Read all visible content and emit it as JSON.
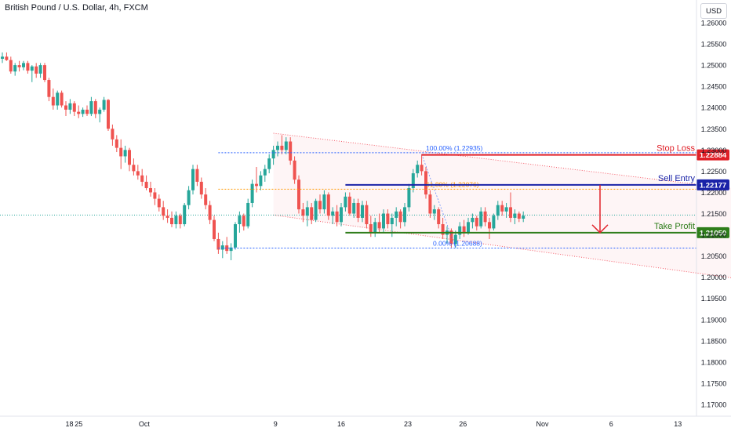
{
  "header": {
    "title": "British Pound / U.S. Dollar, 4h, FXCM",
    "currency": "USD"
  },
  "colors": {
    "up": "#26a69a",
    "down": "#ef5350",
    "stop_loss": "#e02028",
    "sell_entry": "#1a23a8",
    "take_profit": "#2e7d1a",
    "fib": "#2962ff",
    "fib_mid": "#ff9800",
    "channel": "#f23645"
  },
  "chart_data": {
    "type": "candlestick",
    "symbol": "British Pound / U.S. Dollar",
    "timeframe": "4h",
    "source": "FXCM",
    "y_axis": {
      "range": [
        1.168,
        1.263
      ],
      "ticks": [
        "1.26000",
        "1.25500",
        "1.25000",
        "1.24500",
        "1.24000",
        "1.23500",
        "1.23000",
        "1.22500",
        "1.22000",
        "1.21500",
        "1.21000",
        "1.20500",
        "1.20000",
        "1.19500",
        "1.19000",
        "1.18500",
        "1.18000",
        "1.17500",
        "1.17000"
      ]
    },
    "x_axis": {
      "ticks": [
        {
          "label": "18",
          "x": 1
        },
        {
          "label": "25",
          "x": 7.2
        },
        {
          "label": "Oct",
          "x": 13.4
        },
        {
          "label": "9",
          "x": 25.8
        },
        {
          "label": "16",
          "x": 32.0
        },
        {
          "label": "23",
          "x": 38.3
        },
        {
          "label": "26",
          "x": 43.5
        },
        {
          "label": "Nov",
          "x": 51.0
        },
        {
          "label": "6",
          "x": 57.5
        },
        {
          "label": "13",
          "x": 63.8
        }
      ]
    },
    "candles": [
      {
        "x": 0.0,
        "o": 1.2515,
        "h": 1.253,
        "l": 1.2505,
        "c": 1.252
      },
      {
        "x": 0.4,
        "o": 1.252,
        "h": 1.253,
        "l": 1.251,
        "c": 1.2512
      },
      {
        "x": 0.8,
        "o": 1.2512,
        "h": 1.252,
        "l": 1.248,
        "c": 1.2485
      },
      {
        "x": 1.2,
        "o": 1.2485,
        "h": 1.2505,
        "l": 1.2475,
        "c": 1.25
      },
      {
        "x": 1.6,
        "o": 1.25,
        "h": 1.251,
        "l": 1.2485,
        "c": 1.2495
      },
      {
        "x": 2.0,
        "o": 1.2495,
        "h": 1.251,
        "l": 1.2488,
        "c": 1.2505
      },
      {
        "x": 2.4,
        "o": 1.2505,
        "h": 1.251,
        "l": 1.248,
        "c": 1.2487
      },
      {
        "x": 2.8,
        "o": 1.2487,
        "h": 1.25,
        "l": 1.246,
        "c": 1.2497
      },
      {
        "x": 3.2,
        "o": 1.2497,
        "h": 1.2505,
        "l": 1.247,
        "c": 1.248
      },
      {
        "x": 3.6,
        "o": 1.248,
        "h": 1.2505,
        "l": 1.247,
        "c": 1.25
      },
      {
        "x": 4.0,
        "o": 1.25,
        "h": 1.2505,
        "l": 1.246,
        "c": 1.2465
      },
      {
        "x": 4.4,
        "o": 1.2465,
        "h": 1.247,
        "l": 1.2415,
        "c": 1.2425
      },
      {
        "x": 4.8,
        "o": 1.2425,
        "h": 1.2445,
        "l": 1.2395,
        "c": 1.2405
      },
      {
        "x": 5.2,
        "o": 1.2405,
        "h": 1.244,
        "l": 1.2395,
        "c": 1.2435
      },
      {
        "x": 5.6,
        "o": 1.2435,
        "h": 1.244,
        "l": 1.24,
        "c": 1.2405
      },
      {
        "x": 6.0,
        "o": 1.2405,
        "h": 1.2415,
        "l": 1.238,
        "c": 1.2395
      },
      {
        "x": 6.4,
        "o": 1.2395,
        "h": 1.242,
        "l": 1.2385,
        "c": 1.241
      },
      {
        "x": 6.8,
        "o": 1.241,
        "h": 1.2415,
        "l": 1.238,
        "c": 1.239
      },
      {
        "x": 7.2,
        "o": 1.239,
        "h": 1.2405,
        "l": 1.2375,
        "c": 1.2385
      },
      {
        "x": 7.6,
        "o": 1.2385,
        "h": 1.24,
        "l": 1.2378,
        "c": 1.2395
      },
      {
        "x": 8.0,
        "o": 1.2395,
        "h": 1.2405,
        "l": 1.238,
        "c": 1.2385
      },
      {
        "x": 8.4,
        "o": 1.2385,
        "h": 1.2425,
        "l": 1.238,
        "c": 1.2415
      },
      {
        "x": 8.8,
        "o": 1.2415,
        "h": 1.242,
        "l": 1.2375,
        "c": 1.2385
      },
      {
        "x": 9.2,
        "o": 1.2385,
        "h": 1.24,
        "l": 1.2365,
        "c": 1.2395
      },
      {
        "x": 9.6,
        "o": 1.2395,
        "h": 1.2425,
        "l": 1.239,
        "c": 1.2418
      },
      {
        "x": 10.0,
        "o": 1.2418,
        "h": 1.242,
        "l": 1.2345,
        "c": 1.235
      },
      {
        "x": 10.4,
        "o": 1.235,
        "h": 1.236,
        "l": 1.231,
        "c": 1.2325
      },
      {
        "x": 10.8,
        "o": 1.2325,
        "h": 1.2335,
        "l": 1.2295,
        "c": 1.2305
      },
      {
        "x": 11.2,
        "o": 1.2305,
        "h": 1.2325,
        "l": 1.2255,
        "c": 1.2285
      },
      {
        "x": 11.6,
        "o": 1.2285,
        "h": 1.231,
        "l": 1.227,
        "c": 1.23
      },
      {
        "x": 12.0,
        "o": 1.23,
        "h": 1.2305,
        "l": 1.225,
        "c": 1.2265
      },
      {
        "x": 12.4,
        "o": 1.2265,
        "h": 1.228,
        "l": 1.224,
        "c": 1.225
      },
      {
        "x": 12.8,
        "o": 1.225,
        "h": 1.2265,
        "l": 1.223,
        "c": 1.224
      },
      {
        "x": 13.2,
        "o": 1.224,
        "h": 1.2255,
        "l": 1.2215,
        "c": 1.2225
      },
      {
        "x": 13.6,
        "o": 1.2225,
        "h": 1.224,
        "l": 1.2205,
        "c": 1.221
      },
      {
        "x": 14.0,
        "o": 1.221,
        "h": 1.2225,
        "l": 1.219,
        "c": 1.22
      },
      {
        "x": 14.4,
        "o": 1.22,
        "h": 1.221,
        "l": 1.217,
        "c": 1.2185
      },
      {
        "x": 14.8,
        "o": 1.2185,
        "h": 1.2195,
        "l": 1.2155,
        "c": 1.2165
      },
      {
        "x": 15.2,
        "o": 1.2165,
        "h": 1.218,
        "l": 1.2135,
        "c": 1.2145
      },
      {
        "x": 15.6,
        "o": 1.2145,
        "h": 1.216,
        "l": 1.2128,
        "c": 1.214
      },
      {
        "x": 16.0,
        "o": 1.214,
        "h": 1.2155,
        "l": 1.2118,
        "c": 1.2125
      },
      {
        "x": 16.4,
        "o": 1.2125,
        "h": 1.2155,
        "l": 1.2115,
        "c": 1.2145
      },
      {
        "x": 16.8,
        "o": 1.2145,
        "h": 1.215,
        "l": 1.2115,
        "c": 1.2125
      },
      {
        "x": 17.2,
        "o": 1.2125,
        "h": 1.2175,
        "l": 1.212,
        "c": 1.217
      },
      {
        "x": 17.6,
        "o": 1.217,
        "h": 1.2215,
        "l": 1.216,
        "c": 1.2205
      },
      {
        "x": 18.0,
        "o": 1.2205,
        "h": 1.2265,
        "l": 1.2195,
        "c": 1.2255
      },
      {
        "x": 18.4,
        "o": 1.2255,
        "h": 1.2265,
        "l": 1.2215,
        "c": 1.2225
      },
      {
        "x": 18.8,
        "o": 1.2225,
        "h": 1.2235,
        "l": 1.2185,
        "c": 1.2195
      },
      {
        "x": 19.2,
        "o": 1.2195,
        "h": 1.221,
        "l": 1.216,
        "c": 1.217
      },
      {
        "x": 19.6,
        "o": 1.217,
        "h": 1.218,
        "l": 1.2125,
        "c": 1.2135
      },
      {
        "x": 20.0,
        "o": 1.2135,
        "h": 1.2145,
        "l": 1.2085,
        "c": 1.209
      },
      {
        "x": 20.4,
        "o": 1.209,
        "h": 1.2105,
        "l": 1.2055,
        "c": 1.2065
      },
      {
        "x": 20.8,
        "o": 1.2065,
        "h": 1.2085,
        "l": 1.2045,
        "c": 1.2075
      },
      {
        "x": 21.2,
        "o": 1.2075,
        "h": 1.2095,
        "l": 1.2055,
        "c": 1.2062
      },
      {
        "x": 21.6,
        "o": 1.2062,
        "h": 1.208,
        "l": 1.204,
        "c": 1.207
      },
      {
        "x": 22.0,
        "o": 1.207,
        "h": 1.213,
        "l": 1.2065,
        "c": 1.2125
      },
      {
        "x": 22.4,
        "o": 1.2125,
        "h": 1.2155,
        "l": 1.2105,
        "c": 1.2145
      },
      {
        "x": 22.8,
        "o": 1.2145,
        "h": 1.215,
        "l": 1.211,
        "c": 1.212
      },
      {
        "x": 23.2,
        "o": 1.212,
        "h": 1.2185,
        "l": 1.2115,
        "c": 1.2175
      },
      {
        "x": 23.6,
        "o": 1.2175,
        "h": 1.223,
        "l": 1.2165,
        "c": 1.222
      },
      {
        "x": 24.0,
        "o": 1.222,
        "h": 1.226,
        "l": 1.22,
        "c": 1.2215
      },
      {
        "x": 24.4,
        "o": 1.2215,
        "h": 1.225,
        "l": 1.2205,
        "c": 1.224
      },
      {
        "x": 24.8,
        "o": 1.224,
        "h": 1.2265,
        "l": 1.2225,
        "c": 1.2255
      },
      {
        "x": 25.2,
        "o": 1.2255,
        "h": 1.229,
        "l": 1.2245,
        "c": 1.228
      },
      {
        "x": 25.6,
        "o": 1.228,
        "h": 1.231,
        "l": 1.2265,
        "c": 1.23
      },
      {
        "x": 26.0,
        "o": 1.23,
        "h": 1.232,
        "l": 1.2285,
        "c": 1.231
      },
      {
        "x": 26.4,
        "o": 1.231,
        "h": 1.2335,
        "l": 1.229,
        "c": 1.23
      },
      {
        "x": 26.8,
        "o": 1.23,
        "h": 1.233,
        "l": 1.229,
        "c": 1.232
      },
      {
        "x": 27.2,
        "o": 1.232,
        "h": 1.233,
        "l": 1.2265,
        "c": 1.2275
      },
      {
        "x": 27.6,
        "o": 1.2275,
        "h": 1.2285,
        "l": 1.222,
        "c": 1.223
      },
      {
        "x": 28.0,
        "o": 1.223,
        "h": 1.224,
        "l": 1.215,
        "c": 1.216
      },
      {
        "x": 28.4,
        "o": 1.216,
        "h": 1.2175,
        "l": 1.213,
        "c": 1.2145
      },
      {
        "x": 28.8,
        "o": 1.2145,
        "h": 1.218,
        "l": 1.212,
        "c": 1.2165
      },
      {
        "x": 29.2,
        "o": 1.2165,
        "h": 1.2175,
        "l": 1.2125,
        "c": 1.2135
      },
      {
        "x": 29.6,
        "o": 1.2135,
        "h": 1.2185,
        "l": 1.213,
        "c": 1.218
      },
      {
        "x": 30.0,
        "o": 1.218,
        "h": 1.2195,
        "l": 1.215,
        "c": 1.216
      },
      {
        "x": 30.4,
        "o": 1.216,
        "h": 1.2205,
        "l": 1.215,
        "c": 1.2195
      },
      {
        "x": 30.8,
        "o": 1.2195,
        "h": 1.22,
        "l": 1.2135,
        "c": 1.2145
      },
      {
        "x": 31.2,
        "o": 1.2145,
        "h": 1.2165,
        "l": 1.2125,
        "c": 1.2155
      },
      {
        "x": 31.6,
        "o": 1.2155,
        "h": 1.217,
        "l": 1.212,
        "c": 1.213
      },
      {
        "x": 32.0,
        "o": 1.213,
        "h": 1.2175,
        "l": 1.212,
        "c": 1.2165
      },
      {
        "x": 32.4,
        "o": 1.2165,
        "h": 1.22,
        "l": 1.2155,
        "c": 1.219
      },
      {
        "x": 32.8,
        "o": 1.219,
        "h": 1.22,
        "l": 1.2145,
        "c": 1.215
      },
      {
        "x": 33.2,
        "o": 1.215,
        "h": 1.2185,
        "l": 1.214,
        "c": 1.2175
      },
      {
        "x": 33.6,
        "o": 1.2175,
        "h": 1.2185,
        "l": 1.213,
        "c": 1.214
      },
      {
        "x": 34.0,
        "o": 1.214,
        "h": 1.218,
        "l": 1.213,
        "c": 1.217
      },
      {
        "x": 34.4,
        "o": 1.217,
        "h": 1.218,
        "l": 1.2115,
        "c": 1.2125
      },
      {
        "x": 34.8,
        "o": 1.2125,
        "h": 1.2145,
        "l": 1.2095,
        "c": 1.2105
      },
      {
        "x": 35.2,
        "o": 1.2105,
        "h": 1.214,
        "l": 1.2095,
        "c": 1.213
      },
      {
        "x": 35.6,
        "o": 1.213,
        "h": 1.215,
        "l": 1.2105,
        "c": 1.2115
      },
      {
        "x": 36.0,
        "o": 1.2115,
        "h": 1.216,
        "l": 1.2105,
        "c": 1.215
      },
      {
        "x": 36.4,
        "o": 1.215,
        "h": 1.216,
        "l": 1.2115,
        "c": 1.2125
      },
      {
        "x": 36.8,
        "o": 1.2125,
        "h": 1.215,
        "l": 1.2095,
        "c": 1.214
      },
      {
        "x": 37.2,
        "o": 1.214,
        "h": 1.2165,
        "l": 1.212,
        "c": 1.2155
      },
      {
        "x": 37.6,
        "o": 1.2155,
        "h": 1.216,
        "l": 1.2115,
        "c": 1.213
      },
      {
        "x": 38.0,
        "o": 1.213,
        "h": 1.2175,
        "l": 1.212,
        "c": 1.2165
      },
      {
        "x": 38.4,
        "o": 1.2165,
        "h": 1.222,
        "l": 1.2155,
        "c": 1.221
      },
      {
        "x": 38.8,
        "o": 1.221,
        "h": 1.2255,
        "l": 1.22,
        "c": 1.2245
      },
      {
        "x": 39.2,
        "o": 1.2245,
        "h": 1.2275,
        "l": 1.2235,
        "c": 1.2265
      },
      {
        "x": 39.6,
        "o": 1.2265,
        "h": 1.229,
        "l": 1.224,
        "c": 1.225
      },
      {
        "x": 40.0,
        "o": 1.225,
        "h": 1.226,
        "l": 1.2185,
        "c": 1.2195
      },
      {
        "x": 40.4,
        "o": 1.2195,
        "h": 1.2205,
        "l": 1.214,
        "c": 1.215
      },
      {
        "x": 40.8,
        "o": 1.215,
        "h": 1.217,
        "l": 1.2135,
        "c": 1.216
      },
      {
        "x": 41.2,
        "o": 1.216,
        "h": 1.2165,
        "l": 1.2115,
        "c": 1.2125
      },
      {
        "x": 41.6,
        "o": 1.2125,
        "h": 1.214,
        "l": 1.209,
        "c": 1.21
      },
      {
        "x": 42.0,
        "o": 1.21,
        "h": 1.212,
        "l": 1.208,
        "c": 1.211
      },
      {
        "x": 42.4,
        "o": 1.211,
        "h": 1.2115,
        "l": 1.207,
        "c": 1.2078
      },
      {
        "x": 42.8,
        "o": 1.2078,
        "h": 1.211,
        "l": 1.2069,
        "c": 1.21
      },
      {
        "x": 43.2,
        "o": 1.21,
        "h": 1.213,
        "l": 1.209,
        "c": 1.212
      },
      {
        "x": 43.6,
        "o": 1.212,
        "h": 1.2135,
        "l": 1.2095,
        "c": 1.2105
      },
      {
        "x": 44.0,
        "o": 1.2105,
        "h": 1.214,
        "l": 1.21,
        "c": 1.213
      },
      {
        "x": 44.4,
        "o": 1.213,
        "h": 1.215,
        "l": 1.2115,
        "c": 1.214
      },
      {
        "x": 44.8,
        "o": 1.214,
        "h": 1.2145,
        "l": 1.211,
        "c": 1.212
      },
      {
        "x": 45.2,
        "o": 1.212,
        "h": 1.2165,
        "l": 1.2115,
        "c": 1.2155
      },
      {
        "x": 45.6,
        "o": 1.2155,
        "h": 1.2165,
        "l": 1.212,
        "c": 1.213
      },
      {
        "x": 46.0,
        "o": 1.213,
        "h": 1.214,
        "l": 1.209,
        "c": 1.2115
      },
      {
        "x": 46.4,
        "o": 1.2115,
        "h": 1.215,
        "l": 1.211,
        "c": 1.2145
      },
      {
        "x": 46.8,
        "o": 1.2145,
        "h": 1.218,
        "l": 1.2135,
        "c": 1.217
      },
      {
        "x": 47.2,
        "o": 1.217,
        "h": 1.218,
        "l": 1.2145,
        "c": 1.2155
      },
      {
        "x": 47.6,
        "o": 1.2155,
        "h": 1.2175,
        "l": 1.214,
        "c": 1.2165
      },
      {
        "x": 48.0,
        "o": 1.2165,
        "h": 1.22,
        "l": 1.213,
        "c": 1.214
      },
      {
        "x": 48.4,
        "o": 1.214,
        "h": 1.216,
        "l": 1.2125,
        "c": 1.215
      },
      {
        "x": 48.8,
        "o": 1.215,
        "h": 1.2155,
        "l": 1.213,
        "c": 1.2138
      },
      {
        "x": 49.2,
        "o": 1.2138,
        "h": 1.2155,
        "l": 1.213,
        "c": 1.2145
      }
    ],
    "channel": {
      "upper": [
        [
          25.6,
          1.23395
        ],
        [
          69.6,
          1.2207
        ]
      ],
      "lower": [
        [
          25.6,
          1.21465
        ],
        [
          69.6,
          1.1996
        ]
      ]
    },
    "current_price": 1.21465,
    "fibonacci": [
      {
        "label": "100.00% (1.22935)",
        "level": 1.22935
      },
      {
        "label": "61.80% (1.22076)",
        "level": 1.22076
      },
      {
        "label": "0.00% (1.20688)",
        "level": 1.20688
      }
    ],
    "levels": [
      {
        "name": "Stop Loss",
        "value": 1.22884,
        "price_label": "1.22884"
      },
      {
        "name": "Sell Entry",
        "value": 1.22177,
        "price_label": "1.22177"
      },
      {
        "name": "Take Profit",
        "value": 1.2105,
        "price_label": "1.21050"
      }
    ],
    "projection": {
      "from": 1.22177,
      "to": 1.2105
    }
  }
}
